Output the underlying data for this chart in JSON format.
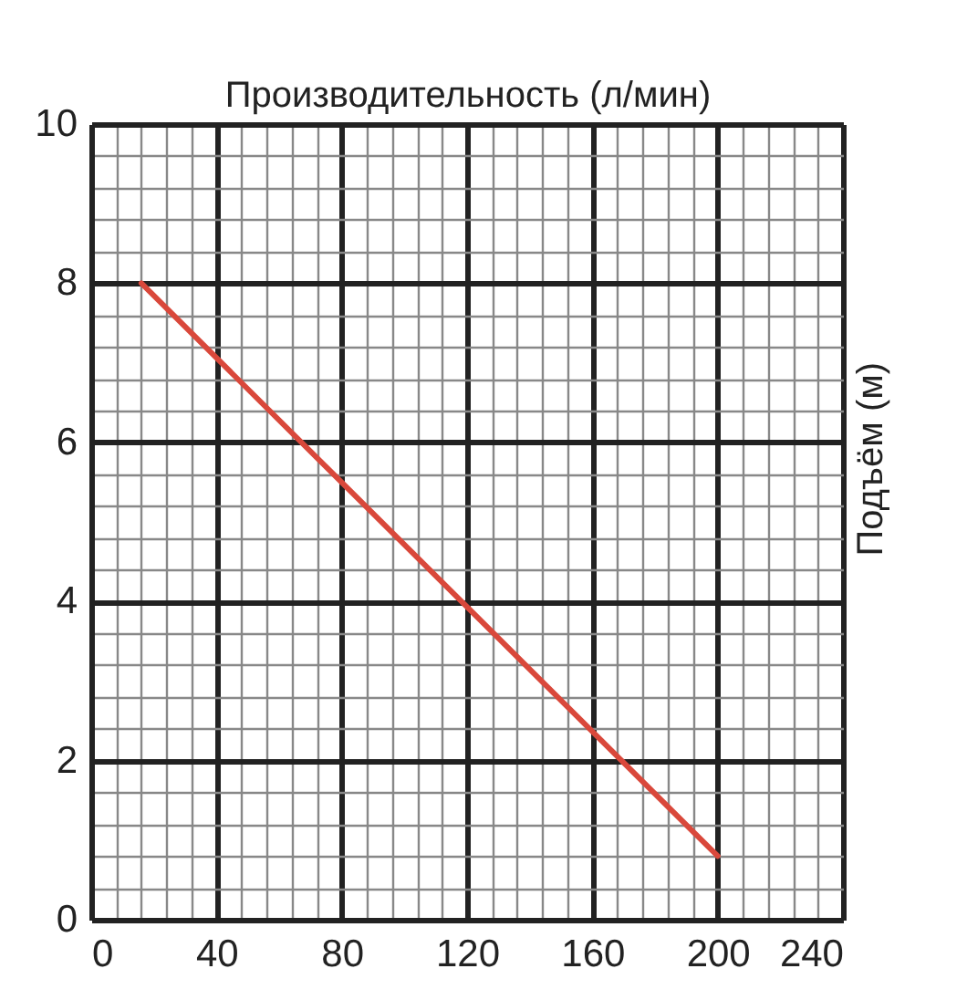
{
  "chart_data": {
    "type": "line",
    "xlabel": "Производительность (л/мин)",
    "ylabel": "Подъём (м)",
    "x": [
      16,
      200
    ],
    "series": [
      {
        "color": "#d9483b",
        "values": [
          8,
          0.8
        ]
      }
    ],
    "xlim": [
      0,
      240
    ],
    "xticks": [
      0,
      40,
      80,
      120,
      160,
      200,
      240
    ],
    "ylim": [
      0,
      10
    ],
    "yticks": [
      0,
      2,
      4,
      6,
      8,
      10
    ],
    "grid": true,
    "marker": "none",
    "line_style": "solid"
  }
}
